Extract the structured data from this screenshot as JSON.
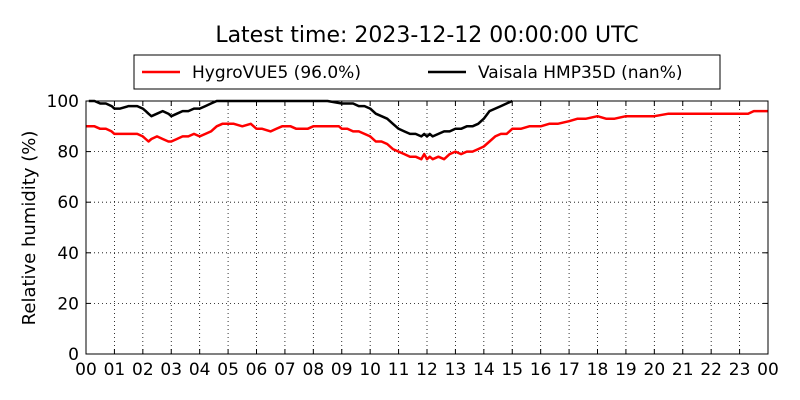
{
  "chart_data": {
    "type": "line",
    "title": "Latest time: 2023-12-12 00:00:00 UTC",
    "xlabel": "",
    "ylabel": "Relative humidity (%)",
    "xlim": [
      0,
      24
    ],
    "ylim": [
      0,
      100
    ],
    "grid": true,
    "legend_position": "top",
    "x_tick_labels": [
      "00",
      "01",
      "02",
      "03",
      "04",
      "05",
      "06",
      "07",
      "08",
      "09",
      "10",
      "11",
      "12",
      "13",
      "14",
      "15",
      "16",
      "17",
      "18",
      "19",
      "20",
      "21",
      "22",
      "23",
      "00"
    ],
    "y_ticks": [
      0,
      20,
      40,
      60,
      80,
      100
    ],
    "series": [
      {
        "name": "HygroVUE5 (96.0%)",
        "color": "#ff0000",
        "x": [
          0.0,
          0.3,
          0.5,
          0.7,
          0.9,
          1.0,
          1.2,
          1.5,
          1.8,
          2.0,
          2.1,
          2.2,
          2.3,
          2.5,
          2.7,
          2.9,
          3.0,
          3.2,
          3.4,
          3.6,
          3.8,
          4.0,
          4.2,
          4.4,
          4.6,
          4.8,
          5.0,
          5.2,
          5.5,
          5.8,
          6.0,
          6.2,
          6.5,
          6.7,
          6.9,
          7.0,
          7.2,
          7.4,
          7.6,
          7.8,
          8.0,
          8.3,
          8.6,
          8.9,
          9.0,
          9.2,
          9.4,
          9.6,
          9.8,
          10.0,
          10.2,
          10.4,
          10.6,
          10.8,
          11.0,
          11.2,
          11.4,
          11.6,
          11.8,
          11.9,
          12.0,
          12.1,
          12.2,
          12.4,
          12.6,
          12.8,
          13.0,
          13.2,
          13.4,
          13.6,
          13.8,
          14.0,
          14.2,
          14.4,
          14.6,
          14.8,
          15.0,
          15.3,
          15.6,
          16.0,
          16.3,
          16.6,
          17.0,
          17.3,
          17.6,
          18.0,
          18.3,
          18.6,
          19.0,
          19.5,
          20.0,
          20.5,
          21.0,
          21.5,
          22.0,
          22.5,
          23.0,
          23.3,
          23.5,
          24.0
        ],
        "values": [
          90,
          90,
          89,
          89,
          88,
          87,
          87,
          87,
          87,
          86,
          85,
          84,
          85,
          86,
          85,
          84,
          84,
          85,
          86,
          86,
          87,
          86,
          87,
          88,
          90,
          91,
          91,
          91,
          90,
          91,
          89,
          89,
          88,
          89,
          90,
          90,
          90,
          89,
          89,
          89,
          90,
          90,
          90,
          90,
          89,
          89,
          88,
          88,
          87,
          86,
          84,
          84,
          83,
          81,
          80,
          79,
          78,
          78,
          77,
          79,
          77,
          78,
          77,
          78,
          77,
          79,
          80,
          79,
          80,
          80,
          81,
          82,
          84,
          86,
          87,
          87,
          89,
          89,
          90,
          90,
          91,
          91,
          92,
          93,
          93,
          94,
          93,
          93,
          94,
          94,
          94,
          95,
          95,
          95,
          95,
          95,
          95,
          95,
          96,
          96
        ]
      },
      {
        "name": "Vaisala HMP35D (nan%)",
        "color": "#000000",
        "x": [
          0.1,
          0.3,
          0.5,
          0.7,
          0.9,
          1.0,
          1.2,
          1.5,
          1.8,
          2.0,
          2.1,
          2.2,
          2.3,
          2.5,
          2.7,
          2.9,
          3.0,
          3.2,
          3.4,
          3.6,
          3.8,
          4.0,
          4.2,
          4.4,
          4.6,
          4.8,
          5.0,
          5.5,
          6.0,
          6.5,
          7.0,
          7.5,
          8.0,
          8.5,
          9.0,
          9.2,
          9.4,
          9.6,
          9.8,
          10.0,
          10.2,
          10.4,
          10.6,
          10.8,
          11.0,
          11.2,
          11.4,
          11.6,
          11.8,
          11.9,
          12.0,
          12.1,
          12.2,
          12.4,
          12.6,
          12.8,
          13.0,
          13.2,
          13.4,
          13.6,
          13.8,
          14.0,
          14.2,
          14.4,
          14.6,
          14.8,
          15.0
        ],
        "values": [
          100,
          100,
          99,
          99,
          98,
          97,
          97,
          98,
          98,
          97,
          96,
          95,
          94,
          95,
          96,
          95,
          94,
          95,
          96,
          96,
          97,
          97,
          98,
          99,
          100,
          100,
          100,
          100,
          100,
          100,
          100,
          100,
          100,
          100,
          99,
          99,
          99,
          98,
          98,
          97,
          95,
          94,
          93,
          91,
          89,
          88,
          87,
          87,
          86,
          87,
          86,
          87,
          86,
          87,
          88,
          88,
          89,
          89,
          90,
          90,
          91,
          93,
          96,
          97,
          98,
          99,
          100
        ]
      }
    ]
  }
}
